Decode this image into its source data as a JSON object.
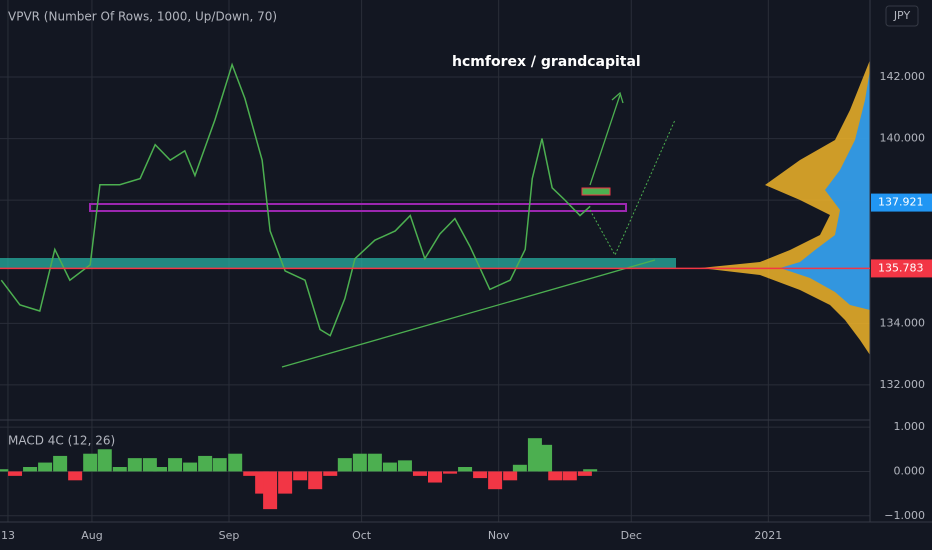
{
  "chart_data": [
    {
      "type": "line",
      "title": "VPVR (Number Of Rows, 1000, Up/Down, 70)",
      "annotation": "hcmforex / grandcapital",
      "currency": "JPY",
      "x": [
        -1.5,
        2.7,
        7.2,
        10.6,
        14.0,
        18.6,
        20.8,
        25.3,
        29.9,
        33.3,
        36.7,
        40.0,
        42.3,
        46.8,
        50.7,
        53.6,
        57.5,
        59.3,
        62.7,
        67.2,
        70.6,
        72.9,
        76.2,
        78.5,
        83.0,
        87.6,
        91.0,
        94.3,
        97.7,
        101.1,
        104.5,
        109.0,
        113.6,
        117.0,
        118.6,
        120.8,
        123.1,
        126.0,
        129.4,
        131.7
      ],
      "series": [
        {
          "color": "#4caf50",
          "values": [
            135.4,
            134.6,
            134.4,
            136.4,
            135.4,
            135.9,
            138.5,
            138.5,
            138.7,
            139.8,
            139.3,
            139.6,
            138.8,
            140.6,
            142.4,
            141.3,
            139.3,
            137.0,
            135.7,
            135.4,
            133.8,
            133.6,
            134.8,
            136.1,
            136.7,
            137.0,
            137.5,
            136.1,
            136.9,
            137.4,
            136.5,
            135.1,
            135.4,
            136.4,
            138.7,
            140.0,
            138.4,
            138.0,
            137.5,
            137.8
          ]
        }
      ],
      "xlim": [
        -1.8,
        195
      ],
      "xticks": [
        {
          "value": 0,
          "label": "13"
        },
        {
          "value": 19,
          "label": "Aug"
        },
        {
          "value": 50,
          "label": "Sep"
        },
        {
          "value": 80,
          "label": "Oct"
        },
        {
          "value": 111,
          "label": "Nov"
        },
        {
          "value": 141,
          "label": "Dec"
        },
        {
          "value": 172,
          "label": "2021"
        }
      ],
      "ylim": [
        130.86,
        144.5
      ],
      "yticks": [
        {
          "value": 132,
          "label": "132.000"
        },
        {
          "value": 134,
          "label": "134.000"
        },
        {
          "value": 138,
          "label": "138.000"
        },
        {
          "value": 140,
          "label": "140.000"
        },
        {
          "value": 142,
          "label": "142.000"
        }
      ],
      "markers": [
        {
          "value": 137.921,
          "color": "#2196f3"
        },
        {
          "value": 135.783,
          "color": "#f23645"
        }
      ],
      "grid": true
    },
    {
      "type": "bar",
      "title": "MACD 4C (12, 26)",
      "x": [
        -1.5,
        1.6,
        5.0,
        8.4,
        11.8,
        15.2,
        18.6,
        21.9,
        25.3,
        28.7,
        32.1,
        34.4,
        37.8,
        41.2,
        44.6,
        47.9,
        51.4,
        54.8,
        57.5,
        59.3,
        62.7,
        66.1,
        69.5,
        72.9,
        76.2,
        79.6,
        83.0,
        86.4,
        89.8,
        93.2,
        96.6,
        100.0,
        103.4,
        106.8,
        110.2,
        113.6,
        115.8,
        119.2,
        121.5,
        123.8,
        127.1,
        130.5,
        131.7
      ],
      "values": [
        0.05,
        -0.1,
        0.1,
        0.2,
        0.35,
        -0.2,
        0.4,
        0.5,
        0.1,
        0.3,
        0.3,
        0.1,
        0.3,
        0.2,
        0.35,
        0.3,
        0.4,
        -0.1,
        -0.5,
        -0.85,
        -0.5,
        -0.2,
        -0.4,
        -0.1,
        0.3,
        0.4,
        0.4,
        0.2,
        0.25,
        -0.1,
        -0.25,
        -0.05,
        0.1,
        -0.15,
        -0.4,
        -0.2,
        0.15,
        0.75,
        0.6,
        -0.2,
        -0.2,
        -0.1,
        0.05
      ],
      "colors": {
        "positive": "#4caf50",
        "negative": "#f23645"
      },
      "xlim": [
        -1.8,
        195
      ],
      "ylim": [
        -1.14,
        1.16
      ],
      "yticks": [
        {
          "value": 1,
          "label": "1.000"
        },
        {
          "value": 0,
          "label": "0.000"
        },
        {
          "value": -1,
          "label": "−1.000"
        }
      ]
    }
  ]
}
